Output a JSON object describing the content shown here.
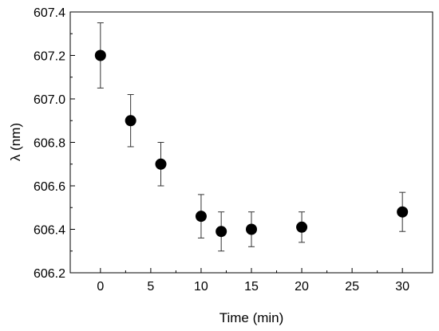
{
  "chart_data": {
    "type": "scatter",
    "xlabel": "Time (min)",
    "ylabel": "λ (nm)",
    "xlim": [
      -3,
      33
    ],
    "ylim": [
      606.2,
      607.4
    ],
    "xticks": [
      0,
      5,
      10,
      15,
      20,
      25,
      30
    ],
    "yticks": [
      606.2,
      606.4,
      606.6,
      606.8,
      607.0,
      607.2,
      607.4
    ],
    "ytick_labels": [
      "606.2",
      "606.4",
      "606.6",
      "606.8",
      "607.0",
      "607.2",
      "607.4"
    ],
    "grid": false,
    "legend": "none",
    "marker_color": "#000000",
    "points": [
      {
        "x": 0,
        "y": 607.2,
        "err_low": 607.05,
        "err_high": 607.35
      },
      {
        "x": 3,
        "y": 606.9,
        "err_low": 606.78,
        "err_high": 607.02
      },
      {
        "x": 6,
        "y": 606.7,
        "err_low": 606.6,
        "err_high": 606.8
      },
      {
        "x": 10,
        "y": 606.46,
        "err_low": 606.36,
        "err_high": 606.56
      },
      {
        "x": 12,
        "y": 606.39,
        "err_low": 606.3,
        "err_high": 606.48
      },
      {
        "x": 15,
        "y": 606.4,
        "err_low": 606.32,
        "err_high": 606.48
      },
      {
        "x": 20,
        "y": 606.41,
        "err_low": 606.34,
        "err_high": 606.48
      },
      {
        "x": 30,
        "y": 606.48,
        "err_low": 606.39,
        "err_high": 606.57
      }
    ]
  }
}
